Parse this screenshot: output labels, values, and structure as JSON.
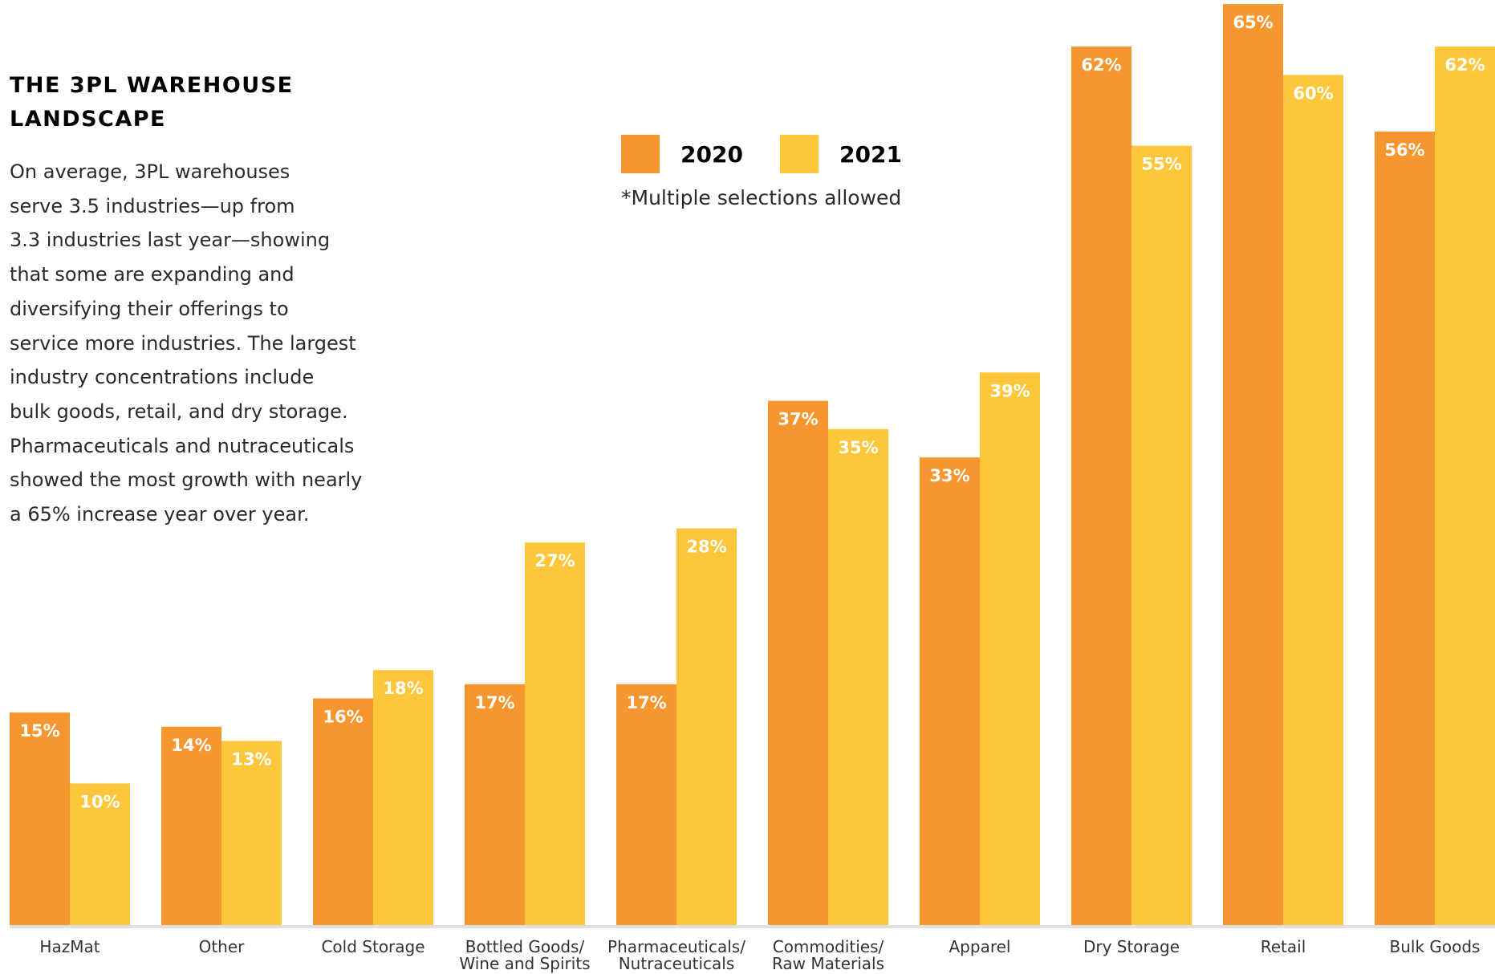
{
  "heading": {
    "title_lines": [
      "THE 3PL WAREHOUSE",
      "LANDSCAPE"
    ],
    "body_lines": [
      "On average, 3PL warehouses",
      "serve 3.5 industries—up from",
      "3.3 industries last year—showing",
      "that some are expanding and",
      "diversifying their offerings to",
      "service more industries. The largest",
      "industry concentrations include",
      "bulk goods, retail, and dry storage.",
      "Pharmaceuticals and nutraceuticals",
      "showed the most growth with nearly",
      "a 65% increase year over year."
    ]
  },
  "legend": {
    "note": "*Multiple selections allowed"
  },
  "colors": {
    "series_2020": "#F7952F",
    "series_2021": "#FEC63A",
    "baseline": "#E0E0E0",
    "data_label": "#FFFFFF"
  },
  "chart_data": {
    "type": "bar",
    "categories": [
      [
        "HazMat"
      ],
      [
        "Other"
      ],
      [
        "Cold Storage"
      ],
      [
        "Bottled Goods/",
        "Wine and Spirits"
      ],
      [
        "Pharmaceuticals/",
        "Nutraceuticals"
      ],
      [
        "Commodities/",
        "Raw Materials"
      ],
      [
        "Apparel"
      ],
      [
        "Dry Storage"
      ],
      [
        "Retail"
      ],
      [
        "Bulk Goods"
      ]
    ],
    "series": [
      {
        "name": "2020",
        "values": [
          15,
          14,
          16,
          17,
          17,
          37,
          33,
          62,
          65,
          56
        ],
        "labels": [
          "15%",
          "14%",
          "16%",
          "17%",
          "17%",
          "37%",
          "33%",
          "62%",
          "65%",
          "56%"
        ]
      },
      {
        "name": "2021",
        "values": [
          10,
          13,
          18,
          27,
          28,
          35,
          39,
          55,
          60,
          62
        ],
        "labels": [
          "10%",
          "13%",
          "18%",
          "27%",
          "28%",
          "35%",
          "39%",
          "55%",
          "60%",
          "62%"
        ]
      }
    ],
    "ylim": [
      0,
      65
    ],
    "grid": false,
    "legend_position": "top-center",
    "data_label_position": "inside-top"
  }
}
